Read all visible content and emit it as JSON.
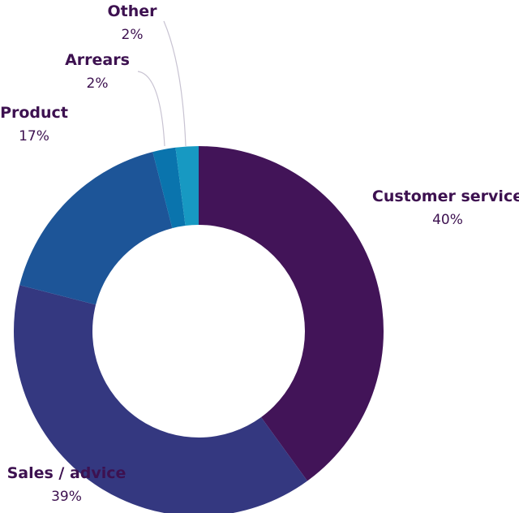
{
  "chart_data": {
    "type": "pie",
    "variant": "donut",
    "title": "",
    "unit": "%",
    "slices": [
      {
        "label": "Customer service",
        "value": 40,
        "value_label": "40%",
        "color": "#421458"
      },
      {
        "label": "Sales / advice",
        "value": 39,
        "value_label": "39%",
        "color": "#343880"
      },
      {
        "label": "Product",
        "value": 17,
        "value_label": "17%",
        "color": "#1d5598"
      },
      {
        "label": "Arrears",
        "value": 2,
        "value_label": "2%",
        "color": "#0a74ad"
      },
      {
        "label": "Other",
        "value": 2,
        "value_label": "2%",
        "color": "#1799c2"
      }
    ],
    "start": "top",
    "direction": "clockwise",
    "label_color": "#3d1150",
    "leader_color": "#c8c3d2"
  }
}
